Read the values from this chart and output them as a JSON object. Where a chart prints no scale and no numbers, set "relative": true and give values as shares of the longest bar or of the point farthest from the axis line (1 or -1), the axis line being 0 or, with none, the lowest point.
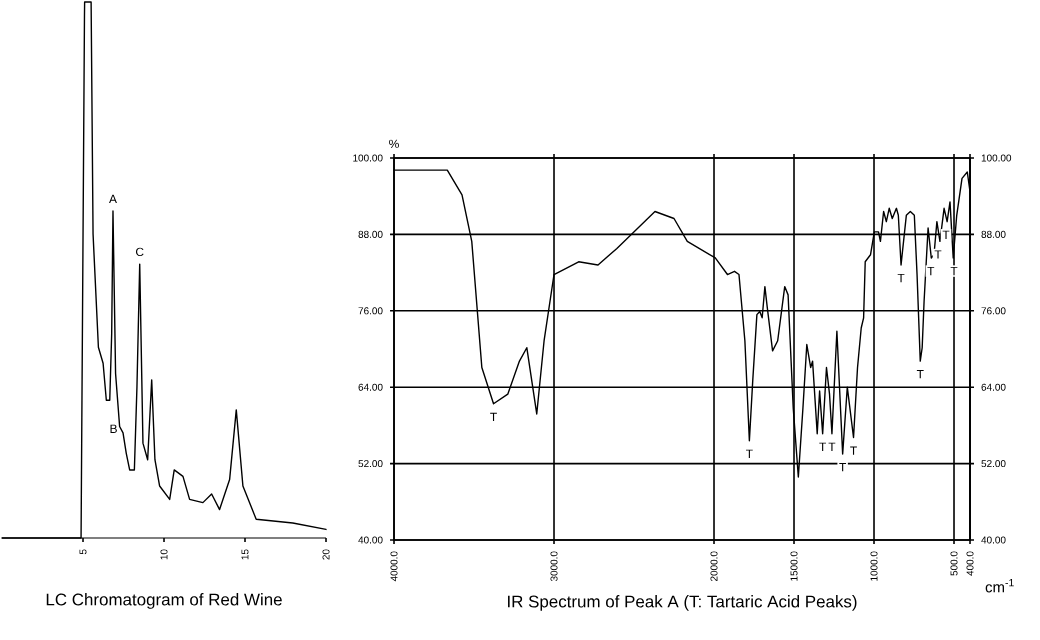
{
  "chart_data": [
    {
      "type": "line",
      "title": "LC Chromatogram of Red Wine",
      "color": "#000000",
      "relative": true,
      "xlim": [
        0,
        20
      ],
      "xticks": [
        5,
        10,
        15,
        20
      ],
      "x": [
        0,
        4.88,
        5.09,
        5.1,
        5.29,
        5.5,
        5.62,
        5.95,
        6.24,
        6.44,
        6.65,
        6.77,
        6.85,
        7.01,
        7.26,
        7.47,
        7.67,
        7.88,
        8.17,
        8.33,
        8.5,
        8.7,
        8.99,
        9.24,
        9.44,
        9.73,
        10.35,
        10.63,
        11.17,
        11.58,
        12.4,
        12.94,
        13.43,
        14.05,
        14.46,
        14.87,
        15.69,
        17.95,
        20
      ],
      "values": [
        0,
        0,
        0.975,
        1,
        1,
        1,
        0.567,
        0.356,
        0.326,
        0.257,
        0.257,
        0.381,
        0.61,
        0.307,
        0.208,
        0.196,
        0.158,
        0.127,
        0.127,
        0.282,
        0.511,
        0.177,
        0.146,
        0.295,
        0.146,
        0.097,
        0.072,
        0.127,
        0.115,
        0.072,
        0.066,
        0.082,
        0.053,
        0.109,
        0.239,
        0.097,
        0.035,
        0.028,
        0.016
      ],
      "annotations": [
        {
          "text": "A",
          "x": 6.85,
          "y": 0.61
        },
        {
          "text": "B",
          "x": 7.5,
          "y": 0.2
        },
        {
          "text": "C",
          "x": 8.5,
          "y": 0.511
        }
      ]
    },
    {
      "type": "line",
      "title": "IR Spectrum of Peak A (T: Tartaric Acid Peaks)",
      "xlabel": "cm$^{-1}$",
      "color": "#000000",
      "grid": true,
      "xlim": [
        4000,
        400
      ],
      "xticks": [
        {
          "value": 4000,
          "label": "4000.0"
        },
        {
          "value": 3000,
          "label": "3000.0"
        },
        {
          "value": 2000,
          "label": "2000.0"
        },
        {
          "value": 1500,
          "label": "1500.0"
        },
        {
          "value": 1000,
          "label": "1000.0"
        },
        {
          "value": 500,
          "label": "500.0"
        },
        {
          "value": 400,
          "label": "400.0"
        }
      ],
      "ylim": [
        40,
        100
      ],
      "yticks": [
        {
          "value": 40,
          "label": "40.00"
        },
        {
          "value": 52,
          "label": "52.00"
        },
        {
          "value": 64,
          "label": "64.00"
        },
        {
          "value": 76,
          "label": "76.00"
        },
        {
          "value": 88,
          "label": "88.00"
        },
        {
          "value": 100,
          "label": "100.00"
        }
      ],
      "y2lim": [
        40,
        100
      ],
      "y2ticks": [
        {
          "value": 40,
          "label": "40.00"
        },
        {
          "value": 52,
          "label": "52.00"
        },
        {
          "value": 64,
          "label": "64.00"
        },
        {
          "value": 76,
          "label": "76.00"
        },
        {
          "value": 88,
          "label": "88.00"
        },
        {
          "value": 100,
          "label": "100.00"
        }
      ],
      "x": [
        4000,
        3667,
        3575,
        3514,
        3451,
        3378,
        3289,
        3216,
        3170,
        3108,
        3062,
        3000,
        2846,
        2725,
        2607,
        2369,
        2250,
        2167,
        1992,
        1916,
        1872,
        1844,
        1807,
        1779,
        1758,
        1732,
        1714,
        1699,
        1682,
        1667,
        1634,
        1602,
        1558,
        1537,
        1505,
        1473,
        1444,
        1420,
        1396,
        1384,
        1355,
        1340,
        1321,
        1297,
        1278,
        1263,
        1232,
        1196,
        1167,
        1128,
        1103,
        1080,
        1065,
        1055,
        1022,
        998,
        972,
        960,
        940,
        923,
        905,
        886,
        860,
        848,
        831,
        798,
        773,
        748,
        731,
        711,
        699,
        687,
        662,
        642,
        625,
        607,
        588,
        562,
        543,
        525,
        505,
        483,
        450,
        417,
        400
      ],
      "values": [
        98.1,
        98.1,
        94.2,
        86.9,
        67.1,
        61.4,
        62.9,
        68.1,
        70.2,
        59.8,
        71.3,
        81.7,
        83.7,
        83.2,
        85.8,
        91.6,
        90.5,
        86.9,
        84.3,
        81.7,
        82.2,
        81.7,
        71.3,
        55.6,
        65,
        75.4,
        75.9,
        74.9,
        79.8,
        76.5,
        69.7,
        71.3,
        79.8,
        78.5,
        60.8,
        49.9,
        60.8,
        70.7,
        67.1,
        68.1,
        56.7,
        63.4,
        56.7,
        67.1,
        62.9,
        56.7,
        72.8,
        53.5,
        64,
        56.1,
        67.1,
        73.3,
        74.9,
        83.7,
        84.8,
        88.4,
        88.4,
        86.9,
        91.6,
        90,
        92.1,
        90.5,
        92.1,
        91,
        83.2,
        91,
        91.6,
        91,
        81.7,
        68.1,
        70.2,
        77.5,
        89,
        84.3,
        84.8,
        90,
        86.9,
        92.1,
        90,
        93.1,
        84.3,
        91,
        96.8,
        97.8,
        94.7
      ],
      "annotations": [
        "%",
        {
          "text": "T",
          "x": 3378,
          "y": 61.4
        },
        {
          "text": "T",
          "x": 1779,
          "y": 55.6
        },
        {
          "text": "T",
          "x": 1321,
          "y": 56.7
        },
        {
          "text": "T",
          "x": 1263,
          "y": 56.7
        },
        {
          "text": "T",
          "x": 1196,
          "y": 53.5
        },
        {
          "text": "T",
          "x": 1128,
          "y": 56.1
        },
        {
          "text": "T",
          "x": 831,
          "y": 83.2
        },
        {
          "text": "T",
          "x": 711,
          "y": 68.1
        },
        {
          "text": "T",
          "x": 645,
          "y": 84.3
        },
        {
          "text": "T",
          "x": 600,
          "y": 86.9
        },
        {
          "text": "T",
          "x": 550,
          "y": 90
        },
        {
          "text": "T",
          "x": 500,
          "y": 84.3
        }
      ]
    }
  ]
}
